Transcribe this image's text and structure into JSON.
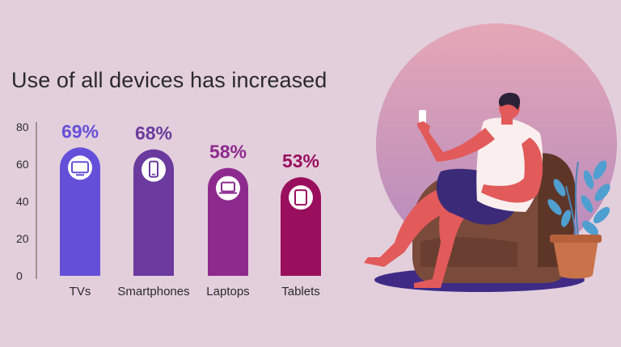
{
  "chart_data": {
    "type": "bar",
    "title": "Use of all devices has increased",
    "categories": [
      "TVs",
      "Smartphones",
      "Laptops",
      "Tablets"
    ],
    "values": [
      69,
      68,
      58,
      53
    ],
    "value_labels": [
      "69%",
      "68%",
      "58%",
      "53%"
    ],
    "bar_icons": [
      "tv-icon",
      "smartphone-icon",
      "laptop-icon",
      "tablet-icon"
    ],
    "bar_colors": [
      "#6450d8",
      "#6a3a9e",
      "#8e2a8e",
      "#990f5e"
    ],
    "label_colors": [
      "#6450d8",
      "#6a3a9e",
      "#8e2a8e",
      "#990f5e"
    ],
    "yticks": [
      0,
      20,
      40,
      60,
      80
    ],
    "ylim": [
      0,
      80
    ],
    "xlabel": "",
    "ylabel": "",
    "grid": false,
    "legend": "none"
  },
  "illustration": {
    "subject": "person-on-chair-with-phone",
    "colors": {
      "circle_top": "#e4a7b5",
      "circle_bottom": "#b489bf",
      "chair": "#7a4a3a",
      "skin": "#e25a5a",
      "shirt": "#fbeeee",
      "pants": "#3b2a78",
      "rug": "#3f2b86",
      "pot": "#c8734a",
      "leaves": "#4f9fd0"
    }
  }
}
